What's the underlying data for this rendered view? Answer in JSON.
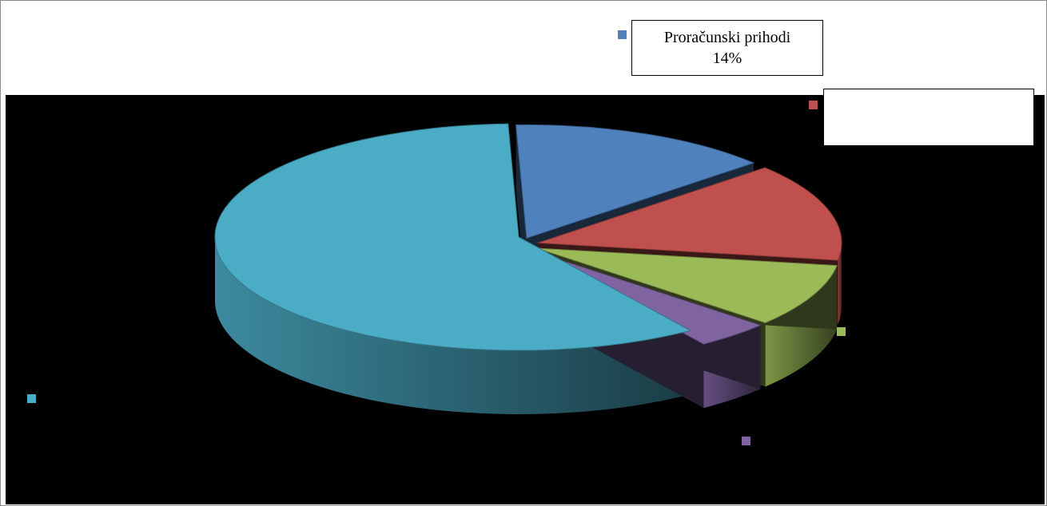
{
  "chart_data": {
    "type": "pie",
    "title": "",
    "three_d": true,
    "exploded": true,
    "background": "#000000",
    "slices": [
      {
        "name": "Proračunski prihodi",
        "percent": 14,
        "value_label": "14%",
        "color": "#4f81bd"
      },
      {
        "name": "",
        "percent": 14,
        "value_label": "",
        "color": "#c0504d"
      },
      {
        "name": "",
        "percent": 9,
        "value_label": "",
        "color": "#9bbb59"
      },
      {
        "name": "",
        "percent": 4,
        "value_label": "",
        "color": "#8064a2"
      },
      {
        "name": "",
        "percent": 59,
        "value_label": "",
        "color": "#4bacc6"
      }
    ]
  }
}
